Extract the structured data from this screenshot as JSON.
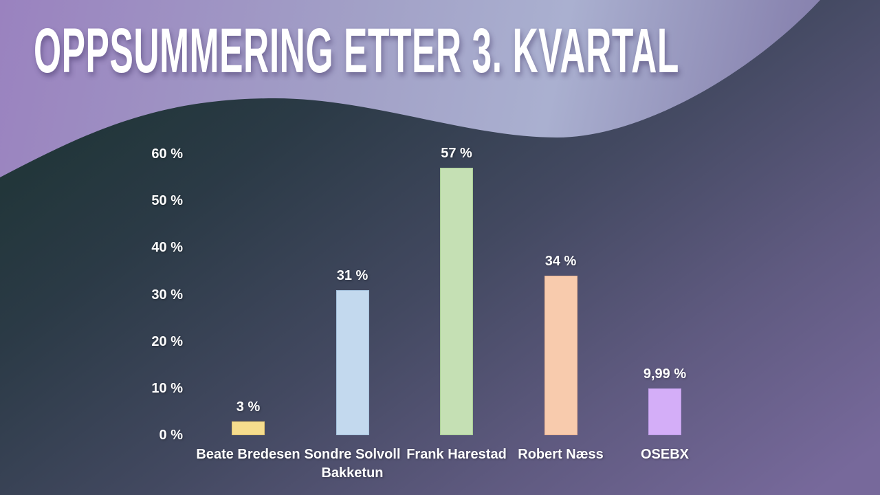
{
  "slide": {
    "title": "OPPSUMMERING ETTER 3. KVARTAL"
  },
  "colors": {
    "text": "#ffffff",
    "bg_top_left": "#9a82bf",
    "bg_light_mid": "#a2a1c7",
    "bg_light": "#aab0d0",
    "bg_mid_right": "#8b87b2",
    "bg_bottom_right": "#786c9e",
    "wave_teal": "#1b3331",
    "wave_slate": "#2b3a46",
    "wave_mid": "#434961",
    "wave_purple_edge": "#5f5a80",
    "wave_purple": "#77699b"
  },
  "chart_data": {
    "type": "bar",
    "title": "",
    "xlabel": "",
    "ylabel": "",
    "categories": [
      "Beate Bredesen",
      "Sondre Solvoll Bakketun",
      "Frank Harestad",
      "Robert Næss",
      "OSEBX"
    ],
    "values": [
      3,
      31,
      57,
      34,
      9.99
    ],
    "value_labels": [
      "3 %",
      "31 %",
      "57 %",
      "34 %",
      "9,99 %"
    ],
    "bar_colors": [
      "#F6DD8D",
      "#C3D9EE",
      "#C5E0B4",
      "#F8CBAD",
      "#D4AEF8"
    ],
    "bar_border_colors": [
      "#e0c372",
      "#a5c2dd",
      "#aacf96",
      "#eab493",
      "#bd9ce6"
    ],
    "ylim": [
      0,
      60
    ],
    "yticks": [
      0,
      10,
      20,
      30,
      40,
      50,
      60
    ],
    "ytick_labels": [
      "0 %",
      "10 %",
      "20 %",
      "30 %",
      "40 %",
      "50 %",
      "60 %"
    ],
    "grid": false,
    "legend": false,
    "label_color": "#ffffff"
  }
}
